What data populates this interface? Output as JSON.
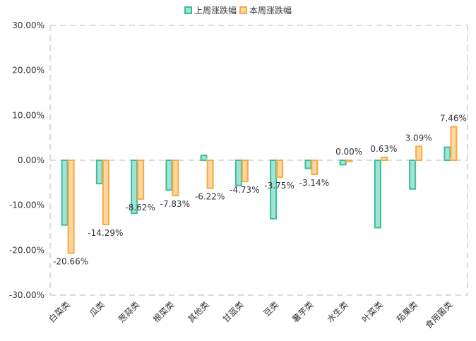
{
  "chart_data": {
    "type": "bar",
    "title": "",
    "xlabel": "",
    "ylabel": "",
    "categories": [
      "白菜类",
      "瓜类",
      "葱蒜类",
      "根菜类",
      "其他类",
      "甘蓝类",
      "豆类",
      "薯芋类",
      "水生类",
      "叶菜类",
      "茄果类",
      "食用菌类"
    ],
    "series": [
      {
        "name": "上周涨跌幅",
        "color": "#3dbd9f",
        "fill": "#a3e3d3",
        "values": [
          -14.4,
          -5.2,
          -11.8,
          -6.6,
          1.1,
          -5.6,
          -13.0,
          -1.8,
          -1.0,
          -15.0,
          -6.4,
          2.9
        ],
        "show_labels": false
      },
      {
        "name": "本周涨跌幅",
        "color": "#f5ab42",
        "fill": "#fdd6a0",
        "values": [
          -20.66,
          -14.29,
          -8.62,
          -7.83,
          -6.22,
          -4.73,
          -3.75,
          -3.14,
          0.0,
          0.63,
          3.09,
          7.46
        ],
        "labels": [
          "-20.66%",
          "-14.29%",
          "-8.62%",
          "-7.83%",
          "-6.22%",
          "-4.73%",
          "-3.75%",
          "-3.14%",
          "0.00%",
          "0.63%",
          "3.09%",
          "7.46%"
        ],
        "show_labels": true
      }
    ],
    "ylim": [
      -30,
      30
    ],
    "yticks": [
      30,
      20,
      10,
      0,
      -10,
      -20,
      -30
    ],
    "ytick_labels": [
      "30.00%",
      "20.00%",
      "10.00%",
      "0.00%",
      "-10.00%",
      "-20.00%",
      "-30.00%"
    ],
    "grid": false,
    "plot_border": "dashed",
    "zero_line": "dashed",
    "legend": {
      "position": "top-center",
      "entries": [
        "上周涨跌幅",
        "本周涨跌幅"
      ]
    },
    "x_label_rotation_deg": -45
  }
}
